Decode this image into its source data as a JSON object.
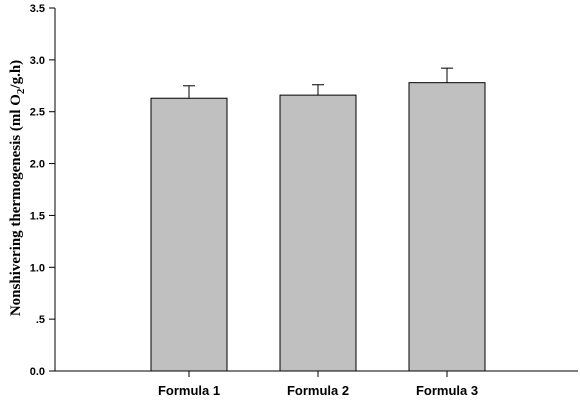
{
  "chart_data": {
    "type": "bar",
    "categories": [
      "Formula 1",
      "Formula 2",
      "Formula 3"
    ],
    "values": [
      2.63,
      2.66,
      2.78
    ],
    "errors": [
      0.12,
      0.1,
      0.14
    ],
    "ylabel": {
      "prefix": "Nonshivering thermogenesis (ml O",
      "subscript": "2",
      "suffix": "/g.h)"
    },
    "ylim": [
      0,
      3.5
    ],
    "yticks": [
      "0.0",
      ".5",
      "1.0",
      "1.5",
      "2.0",
      "2.5",
      "3.0",
      "3.5"
    ],
    "ytick_values": [
      0,
      0.5,
      1.0,
      1.5,
      2.0,
      2.5,
      3.0,
      3.5
    ],
    "grid": false,
    "bar_color": "#c0c0c0",
    "edge_color": "#000000"
  }
}
